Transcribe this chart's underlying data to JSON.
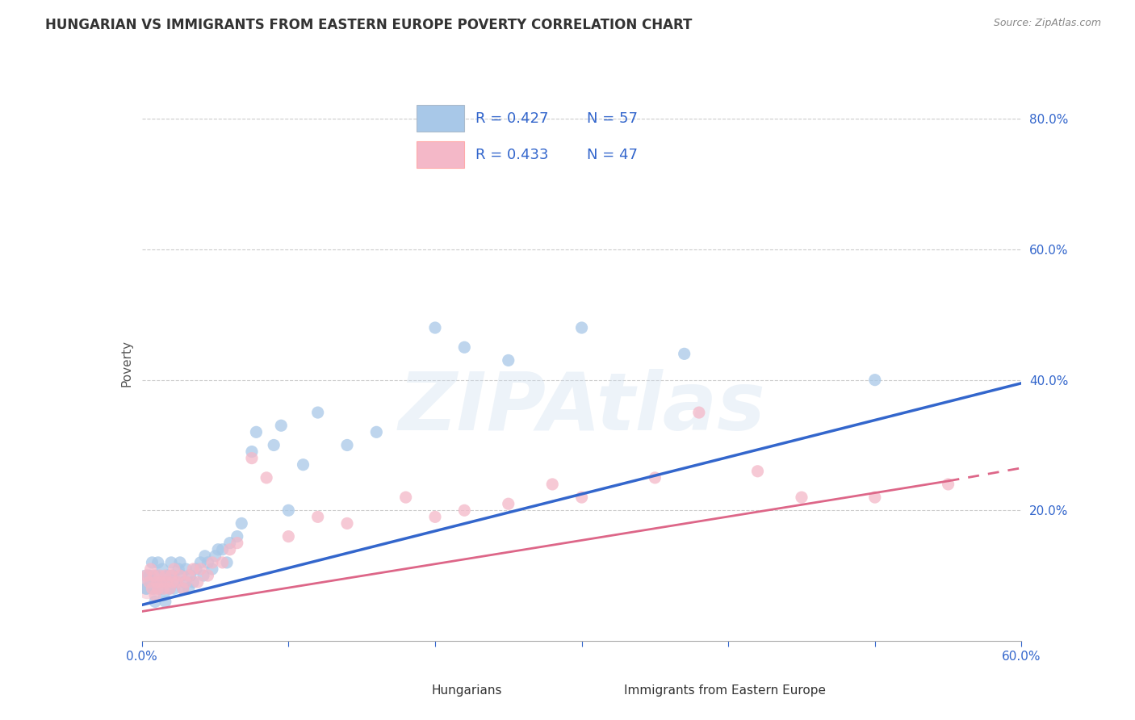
{
  "title": "HUNGARIAN VS IMMIGRANTS FROM EASTERN EUROPE POVERTY CORRELATION CHART",
  "source": "Source: ZipAtlas.com",
  "ylabel": "Poverty",
  "xlim": [
    0.0,
    0.6
  ],
  "ylim": [
    0.0,
    0.85
  ],
  "xticks": [
    0.0,
    0.1,
    0.2,
    0.3,
    0.4,
    0.5,
    0.6
  ],
  "xticklabels": [
    "0.0%",
    "",
    "",
    "",
    "",
    "",
    "60.0%"
  ],
  "ytick_positions": [
    0.2,
    0.4,
    0.6,
    0.8
  ],
  "ytick_labels": [
    "20.0%",
    "40.0%",
    "60.0%",
    "80.0%"
  ],
  "legend1_R": "R = 0.427",
  "legend1_N": "N = 57",
  "legend2_R": "R = 0.433",
  "legend2_N": "N = 47",
  "hungarian_color": "#a8c8e8",
  "immigrant_color": "#f4b8c8",
  "hungarian_line_color": "#3366cc",
  "immigrant_line_color": "#dd6688",
  "legend_text_color": "#3366cc",
  "background_color": "#ffffff",
  "watermark": "ZIPAtlas",
  "title_fontsize": 12,
  "axis_label_fontsize": 11,
  "tick_fontsize": 11,
  "hungarian_x": [
    0.003,
    0.005,
    0.006,
    0.007,
    0.008,
    0.009,
    0.01,
    0.011,
    0.012,
    0.013,
    0.014,
    0.015,
    0.016,
    0.017,
    0.018,
    0.019,
    0.02,
    0.021,
    0.022,
    0.023,
    0.025,
    0.026,
    0.027,
    0.028,
    0.029,
    0.03,
    0.032,
    0.033,
    0.035,
    0.037,
    0.04,
    0.042,
    0.043,
    0.045,
    0.048,
    0.05,
    0.052,
    0.055,
    0.058,
    0.06,
    0.065,
    0.068,
    0.075,
    0.078,
    0.09,
    0.095,
    0.1,
    0.11,
    0.12,
    0.14,
    0.16,
    0.2,
    0.22,
    0.25,
    0.3,
    0.37,
    0.5
  ],
  "hungarian_y": [
    0.08,
    0.1,
    0.09,
    0.12,
    0.08,
    0.06,
    0.1,
    0.12,
    0.09,
    0.08,
    0.11,
    0.07,
    0.06,
    0.09,
    0.1,
    0.08,
    0.12,
    0.1,
    0.08,
    0.09,
    0.11,
    0.12,
    0.1,
    0.08,
    0.09,
    0.11,
    0.08,
    0.1,
    0.09,
    0.11,
    0.12,
    0.1,
    0.13,
    0.12,
    0.11,
    0.13,
    0.14,
    0.14,
    0.12,
    0.15,
    0.16,
    0.18,
    0.29,
    0.32,
    0.3,
    0.33,
    0.2,
    0.27,
    0.35,
    0.3,
    0.32,
    0.48,
    0.45,
    0.43,
    0.48,
    0.44,
    0.4
  ],
  "hungarian_sizes_large": [
    0.003,
    400
  ],
  "immigrant_x": [
    0.003,
    0.005,
    0.006,
    0.007,
    0.008,
    0.009,
    0.01,
    0.011,
    0.012,
    0.013,
    0.015,
    0.016,
    0.017,
    0.019,
    0.02,
    0.021,
    0.022,
    0.024,
    0.026,
    0.028,
    0.03,
    0.032,
    0.035,
    0.038,
    0.04,
    0.045,
    0.048,
    0.055,
    0.06,
    0.065,
    0.075,
    0.085,
    0.1,
    0.12,
    0.14,
    0.18,
    0.2,
    0.22,
    0.25,
    0.28,
    0.3,
    0.35,
    0.38,
    0.42,
    0.45,
    0.5,
    0.55
  ],
  "immigrant_y": [
    0.1,
    0.09,
    0.11,
    0.08,
    0.1,
    0.07,
    0.09,
    0.08,
    0.1,
    0.09,
    0.08,
    0.1,
    0.09,
    0.08,
    0.1,
    0.09,
    0.11,
    0.09,
    0.1,
    0.08,
    0.09,
    0.1,
    0.11,
    0.09,
    0.11,
    0.1,
    0.12,
    0.12,
    0.14,
    0.15,
    0.28,
    0.25,
    0.16,
    0.19,
    0.18,
    0.22,
    0.19,
    0.2,
    0.21,
    0.24,
    0.22,
    0.25,
    0.35,
    0.26,
    0.22,
    0.22,
    0.24
  ],
  "hun_line_x0": 0.0,
  "hun_line_y0": 0.055,
  "hun_line_x1": 0.6,
  "hun_line_y1": 0.395,
  "imm_line_solid_x0": 0.0,
  "imm_line_solid_y0": 0.045,
  "imm_line_solid_x1": 0.55,
  "imm_line_solid_y1": 0.245,
  "imm_line_dash_x0": 0.55,
  "imm_line_dash_y0": 0.245,
  "imm_line_dash_x1": 0.6,
  "imm_line_dash_y1": 0.265
}
